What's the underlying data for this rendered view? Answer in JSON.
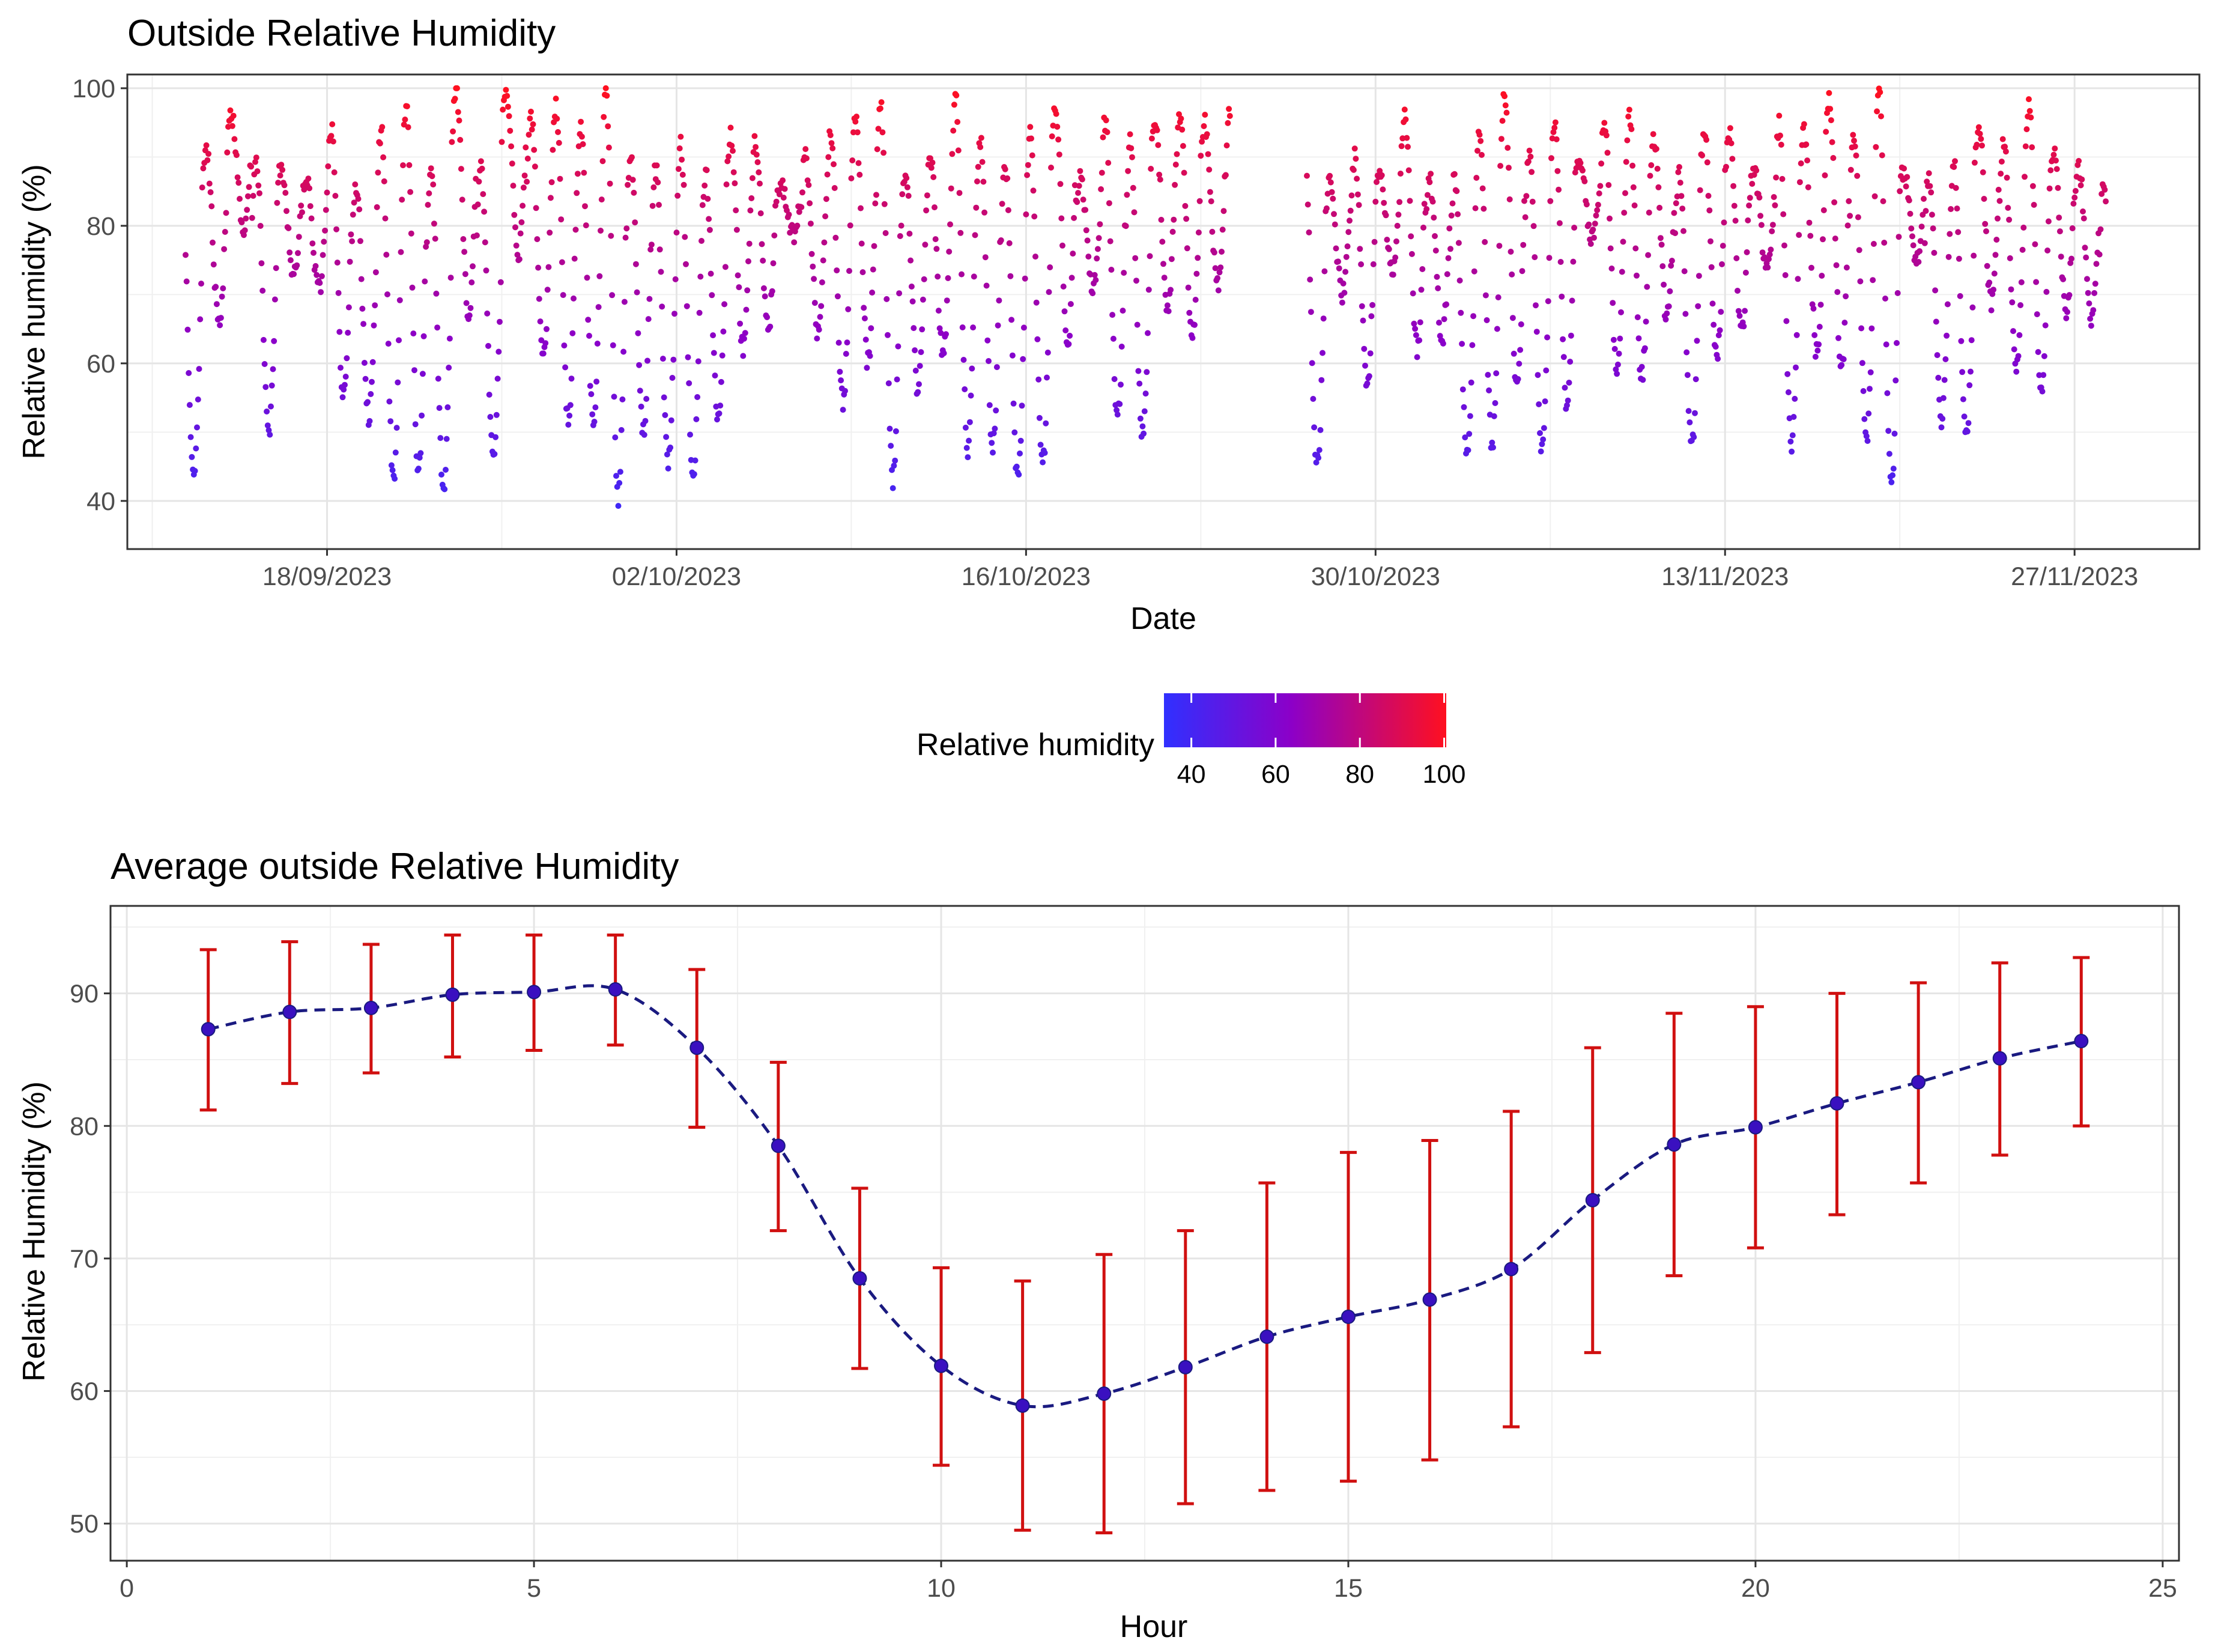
{
  "chart_data": [
    {
      "type": "scatter",
      "title": "Outside Relative Humidity",
      "xlabel": "Date",
      "ylabel": "Relative humidity (%)",
      "x_ticks": [
        "18/09/2023",
        "02/10/2023",
        "16/10/2023",
        "30/10/2023",
        "13/11/2023",
        "27/11/2023"
      ],
      "y_ticks": [
        "40",
        "60",
        "80",
        "100"
      ],
      "ylim": [
        33,
        102
      ],
      "xlim": [
        "2023-09-10",
        "2023-12-02"
      ],
      "x_range": [
        "2023-09-12",
        "2023-11-28"
      ],
      "gap": [
        "2023-10-24",
        "2023-10-27"
      ],
      "sample_interval_hours": 1,
      "color_scale": {
        "title": "Relative humidity",
        "low": "#3030ff",
        "mid": "#8c00c8",
        "high": "#ff1020",
        "ticks": [
          "40",
          "60",
          "80",
          "100"
        ]
      },
      "grid": true,
      "legend_position": "bottom"
    },
    {
      "type": "line",
      "title": "Average outside Relative Humidity",
      "xlabel": "Hour",
      "ylabel": "Relative Humidity (%)",
      "x_ticks": [
        "0",
        "5",
        "10",
        "15",
        "20",
        "25"
      ],
      "y_ticks": [
        "50",
        "60",
        "70",
        "80",
        "90"
      ],
      "xlim": [
        -0.2,
        25.2
      ],
      "ylim": [
        47.2,
        96.6
      ],
      "series": [
        {
          "x": [
            1,
            2,
            3,
            4,
            5,
            6,
            7,
            8,
            9,
            10,
            11,
            12,
            13,
            14,
            15,
            16,
            17,
            18,
            19,
            20,
            21,
            22,
            23,
            24
          ],
          "values": [
            87.3,
            88.6,
            88.9,
            89.9,
            90.1,
            90.3,
            85.9,
            78.5,
            68.5,
            61.9,
            58.9,
            59.8,
            61.8,
            64.1,
            65.6,
            66.9,
            69.2,
            74.4,
            78.6,
            79.9,
            81.7,
            83.3,
            85.1,
            86.4
          ],
          "error_low": [
            81.2,
            83.2,
            84.0,
            85.2,
            85.7,
            86.1,
            79.9,
            72.1,
            61.7,
            54.4,
            49.5,
            49.3,
            51.5,
            52.5,
            53.2,
            54.8,
            57.3,
            62.9,
            68.7,
            70.8,
            73.3,
            75.7,
            77.8,
            80.0
          ],
          "error_high": [
            93.3,
            93.9,
            93.7,
            94.4,
            94.4,
            94.4,
            91.8,
            84.8,
            75.3,
            69.3,
            68.3,
            70.3,
            72.1,
            75.7,
            78.0,
            78.9,
            81.1,
            85.9,
            88.5,
            89.0,
            90.0,
            90.8,
            92.3,
            92.7
          ],
          "color": "#1a1a80",
          "line_style": "dashed"
        }
      ],
      "error_color": "#d01010",
      "grid": true
    }
  ]
}
